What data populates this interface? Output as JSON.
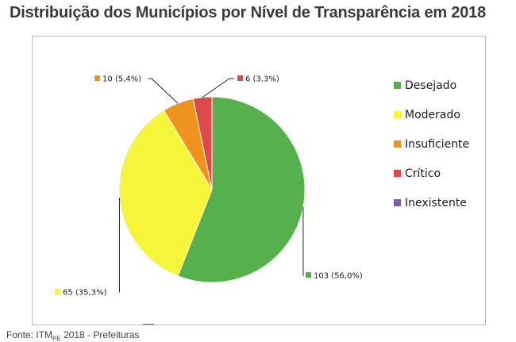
{
  "title": "Distribuição dos Municípios por Nível de Transparência em 2018",
  "source": {
    "prefix": "Fonte: ITM",
    "sub": "PE",
    "suffix": " 2018 - Prefeituras"
  },
  "chart_data": {
    "type": "pie",
    "title": "Distribuição dos Municípios por Nível de Transparência em 2018",
    "legend_position": "right",
    "series": [
      {
        "name": "Desejado",
        "value": 103,
        "percent": "56,0%",
        "label": "103 (56,0%)",
        "color": "#56b04b"
      },
      {
        "name": "Moderado",
        "value": 65,
        "percent": "35,3%",
        "label": "65 (35,3%)",
        "color": "#f5f53a"
      },
      {
        "name": "Insuficiente",
        "value": 10,
        "percent": "5,4%",
        "label": "10 (5,4%)",
        "color": "#f0931e"
      },
      {
        "name": "Crítico",
        "value": 6,
        "percent": "3,3%",
        "label": "6 (3,3%)",
        "color": "#dc4a4a"
      },
      {
        "name": "Inexistente",
        "value": 0,
        "percent": "0,0%",
        "label": "",
        "color": "#7a5ca8"
      }
    ]
  }
}
